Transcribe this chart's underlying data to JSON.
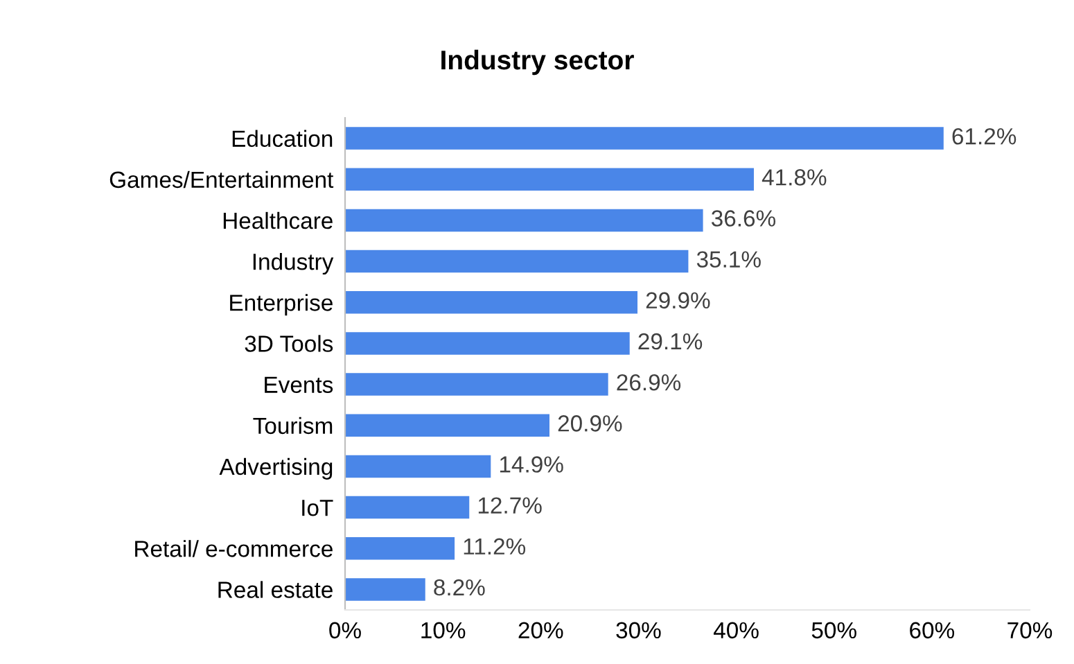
{
  "chart_data": {
    "type": "bar",
    "orientation": "horizontal",
    "title": "Industry sector",
    "categories": [
      "Education",
      "Games/Entertainment",
      "Healthcare",
      "Industry",
      "Enterprise",
      "3D Tools",
      "Events",
      "Tourism",
      "Advertising",
      "IoT",
      "Retail/ e-commerce",
      "Real estate"
    ],
    "values": [
      61.2,
      41.8,
      36.6,
      35.1,
      29.9,
      29.1,
      26.9,
      20.9,
      14.9,
      12.7,
      11.2,
      8.2
    ],
    "value_labels": [
      "61.2%",
      "41.8%",
      "36.6%",
      "35.1%",
      "29.9%",
      "29.1%",
      "26.9%",
      "20.9%",
      "14.9%",
      "12.7%",
      "11.2%",
      "8.2%"
    ],
    "color": "#4a86e8",
    "xlim": [
      0,
      70
    ],
    "xticks": [
      {
        "value": 0,
        "label": "0%"
      },
      {
        "value": 10,
        "label": "10%"
      },
      {
        "value": 20,
        "label": "20%"
      },
      {
        "value": 30,
        "label": "30%"
      },
      {
        "value": 40,
        "label": "40%"
      },
      {
        "value": 50,
        "label": "50%"
      },
      {
        "value": 60,
        "label": "60%"
      },
      {
        "value": 70,
        "label": "70%"
      }
    ],
    "grid": false,
    "legend": false
  }
}
